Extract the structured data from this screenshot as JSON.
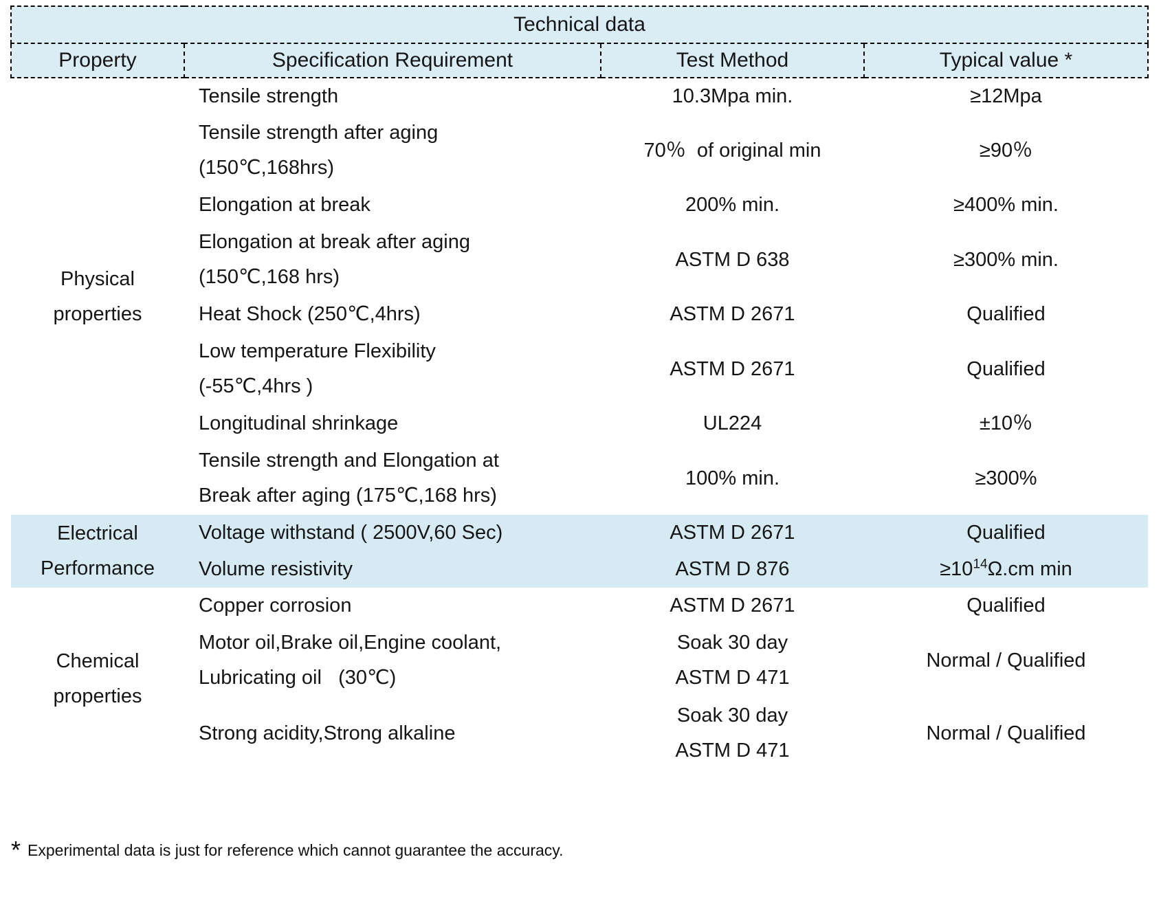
{
  "table": {
    "title": "Technical data",
    "columns": {
      "property": "Property",
      "spec": "Specification Requirement",
      "method": "Test Method",
      "value": "Typical value *"
    },
    "groups": [
      {
        "id": "physical",
        "name_lines": [
          "Physical",
          "properties"
        ]
      },
      {
        "id": "electrical",
        "name_lines": [
          "Electrical",
          "Performance"
        ]
      },
      {
        "id": "chemical",
        "name_lines": [
          "Chemical",
          "properties"
        ]
      }
    ],
    "rows": [
      {
        "spec": [
          "Tensile strength"
        ],
        "method": [
          "10.3Mpa min."
        ],
        "value": [
          "≥12Mpa"
        ]
      },
      {
        "spec": [
          "Tensile strength after aging",
          "(150℃,168hrs)"
        ],
        "method": [
          "70％  of original min"
        ],
        "value": [
          "≥90％"
        ]
      },
      {
        "spec": [
          "Elongation at break"
        ],
        "method": [
          "200% min."
        ],
        "value": [
          "≥400% min."
        ]
      },
      {
        "spec": [
          "Elongation at break after aging",
          "(150℃,168 hrs)"
        ],
        "method": [
          "ASTM D 638"
        ],
        "value": [
          "≥300% min."
        ]
      },
      {
        "spec": [
          "Heat Shock (250℃,4hrs)"
        ],
        "method": [
          "ASTM D 2671"
        ],
        "value": [
          "Qualified"
        ]
      },
      {
        "spec": [
          "Low temperature Flexibility",
          "(-55℃,4hrs )"
        ],
        "method": [
          "ASTM D 2671"
        ],
        "value": [
          "Qualified"
        ]
      },
      {
        "spec": [
          "Longitudinal shrinkage"
        ],
        "method": [
          "UL224"
        ],
        "value": [
          "±10％"
        ]
      },
      {
        "spec": [
          "Tensile strength and Elongation at",
          "Break after aging (175℃,168 hrs)"
        ],
        "method": [
          "100% min."
        ],
        "value": [
          "≥300%"
        ]
      },
      {
        "spec": [
          "Voltage withstand ( 2500V,60 Sec)"
        ],
        "method": [
          "ASTM D 2671"
        ],
        "value": [
          "Qualified"
        ]
      },
      {
        "spec": [
          "Volume resistivity"
        ],
        "method": [
          "ASTM D 876"
        ],
        "value_parts": {
          "base": "≥10",
          "sup": "14",
          "rest": "Ω.cm min"
        }
      },
      {
        "spec": [
          "Copper corrosion"
        ],
        "method": [
          "ASTM D 2671"
        ],
        "value": [
          "Qualified"
        ]
      },
      {
        "spec": [
          "Motor oil,Brake oil,Engine coolant,",
          "Lubricating oil   (30℃)"
        ],
        "method": [
          "Soak 30 day",
          "ASTM D 471"
        ],
        "value": [
          "Normal / Qualified"
        ]
      },
      {
        "spec": [
          "Strong acidity,Strong alkaline"
        ],
        "method": [
          "Soak 30 day",
          "ASTM D 471"
        ],
        "value": [
          "Normal / Qualified"
        ]
      }
    ]
  },
  "footnote": {
    "marker": "*",
    "text": "Experimental data is just for reference which cannot guarantee the accuracy."
  },
  "colors": {
    "header_bg": "#daedf5",
    "electrical_band_bg": "#d6eaf3",
    "border": "#000000"
  }
}
